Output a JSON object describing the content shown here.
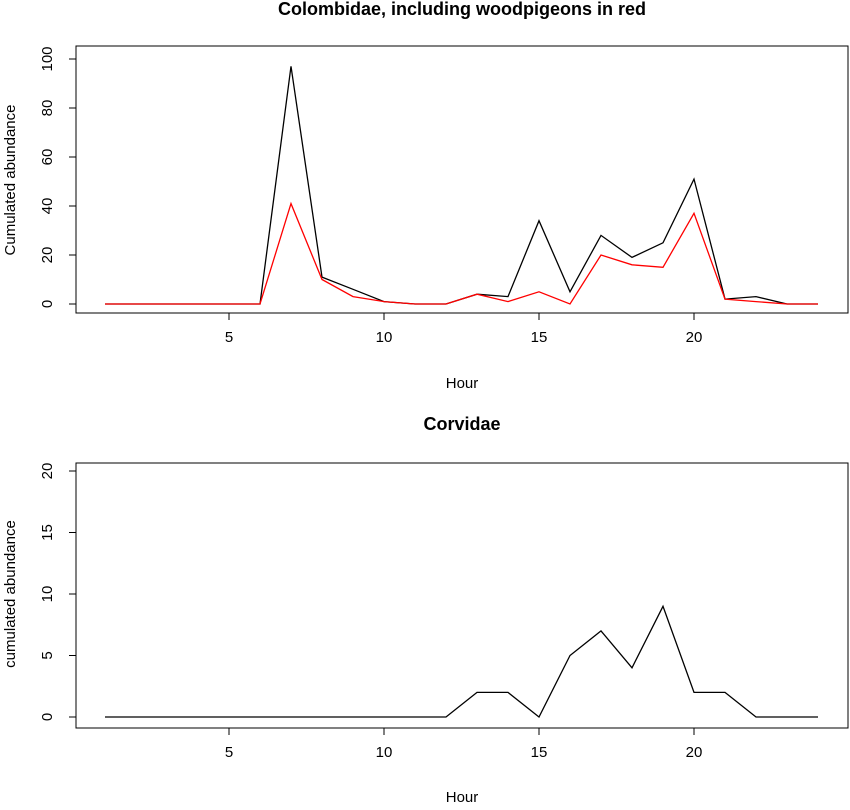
{
  "chart_data": [
    {
      "type": "line",
      "title": "Colombidae, including woodpigeons in red",
      "xlabel": "Hour",
      "ylabel": "Cumulated abundance",
      "xlim": [
        1,
        24
      ],
      "ylim": [
        0,
        100
      ],
      "x_ticks": [
        5,
        10,
        15,
        20
      ],
      "y_ticks": [
        0,
        20,
        40,
        60,
        80,
        100
      ],
      "grid": false,
      "x": [
        1,
        2,
        3,
        4,
        5,
        6,
        7,
        8,
        9,
        10,
        11,
        12,
        13,
        14,
        15,
        16,
        17,
        18,
        19,
        20,
        21,
        22,
        23,
        24
      ],
      "series": [
        {
          "color": "#000000",
          "values": [
            0,
            0,
            0,
            0,
            0,
            0,
            97,
            11,
            6,
            1,
            0,
            0,
            4,
            3,
            34,
            5,
            28,
            19,
            25,
            51,
            2,
            3,
            0,
            0
          ]
        },
        {
          "color": "#ff0000",
          "values": [
            0,
            0,
            0,
            0,
            0,
            0,
            41,
            10,
            3,
            1,
            0,
            0,
            4,
            1,
            5,
            0,
            20,
            16,
            15,
            37,
            2,
            1,
            0,
            0
          ]
        }
      ]
    },
    {
      "type": "line",
      "title": "Corvidae",
      "xlabel": "Hour",
      "ylabel": "cumulated abundance",
      "xlim": [
        1,
        24
      ],
      "ylim": [
        0,
        20
      ],
      "x_ticks": [
        5,
        10,
        15,
        20
      ],
      "y_ticks": [
        0,
        5,
        10,
        15,
        20
      ],
      "grid": false,
      "x": [
        1,
        2,
        3,
        4,
        5,
        6,
        7,
        8,
        9,
        10,
        11,
        12,
        13,
        14,
        15,
        16,
        17,
        18,
        19,
        20,
        21,
        22,
        23,
        24
      ],
      "series": [
        {
          "color": "#000000",
          "values": [
            0,
            0,
            0,
            0,
            0,
            0,
            0,
            0,
            0,
            0,
            0,
            0,
            2,
            2,
            0,
            5,
            7,
            4,
            9,
            2,
            2,
            0,
            0,
            0
          ]
        }
      ]
    }
  ]
}
